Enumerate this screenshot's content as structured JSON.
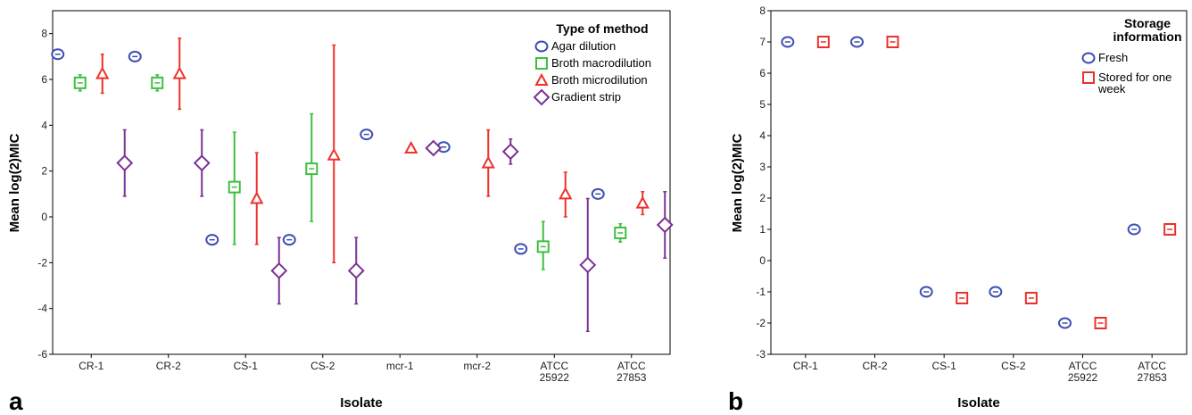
{
  "chart_data": [
    {
      "panel_label": "a",
      "type": "scatter",
      "subtype": "mean-with-error-bars",
      "xlabel": "Isolate",
      "ylabel": "Mean log(2)MIC",
      "ylim": [
        -6,
        9
      ],
      "yticks": [
        -6,
        -4,
        -2,
        0,
        2,
        4,
        6,
        8
      ],
      "ytick_labels": [
        "-6",
        "-4",
        "-2",
        "0",
        "2",
        "4",
        "6",
        "8"
      ],
      "categories": [
        [
          "CR-1"
        ],
        [
          "CR-2"
        ],
        [
          "CS-1"
        ],
        [
          "CS-2"
        ],
        [
          "mcr-1"
        ],
        [
          "mcr-2"
        ],
        [
          "ATCC",
          "25922"
        ],
        [
          "ATCC",
          "27853"
        ]
      ],
      "grid": false,
      "legend": {
        "title": [
          "Type of method"
        ],
        "position": "top-right"
      },
      "series": [
        {
          "name": [
            "Agar dilution"
          ],
          "color": "#3d4fb3",
          "marker": "circle",
          "values": [
            7.1,
            7.0,
            -1.0,
            -1.0,
            3.6,
            3.05,
            -1.4,
            1.0
          ],
          "error_low": [
            7.1,
            7.0,
            -1.0,
            -1.0,
            3.6,
            3.05,
            -1.4,
            1.0
          ],
          "error_high": [
            7.1,
            7.0,
            -1.0,
            -1.0,
            3.6,
            3.05,
            -1.4,
            1.0
          ]
        },
        {
          "name": [
            "Broth macrodilution"
          ],
          "color": "#3fbf3f",
          "marker": "square",
          "values": [
            5.85,
            5.85,
            1.3,
            2.1,
            null,
            null,
            -1.3,
            -0.7
          ],
          "error_low": [
            5.5,
            5.5,
            -1.2,
            -0.2,
            null,
            null,
            -2.3,
            -1.1
          ],
          "error_high": [
            6.2,
            6.2,
            3.7,
            4.5,
            null,
            null,
            -0.2,
            -0.3
          ]
        },
        {
          "name": [
            "Broth microdilution"
          ],
          "color": "#f0302b",
          "marker": "triangle",
          "values": [
            6.25,
            6.25,
            0.8,
            2.7,
            3.0,
            2.35,
            1.0,
            0.6
          ],
          "error_low": [
            5.4,
            4.7,
            -1.2,
            -2.0,
            3.0,
            0.9,
            0.0,
            0.1
          ],
          "error_high": [
            7.1,
            7.8,
            2.8,
            7.5,
            3.0,
            3.8,
            1.95,
            1.1
          ]
        },
        {
          "name": [
            "Gradient strip"
          ],
          "color": "#7b3294",
          "marker": "diamond",
          "values": [
            2.35,
            2.35,
            -2.35,
            -2.35,
            3.0,
            2.85,
            -2.1,
            -0.35
          ],
          "error_low": [
            0.9,
            0.9,
            -3.8,
            -3.8,
            3.0,
            2.3,
            -5.0,
            -1.8
          ],
          "error_high": [
            3.8,
            3.8,
            -0.9,
            -0.9,
            3.0,
            3.4,
            0.8,
            1.1
          ]
        }
      ]
    },
    {
      "panel_label": "b",
      "type": "scatter",
      "subtype": "mean-with-error-bars",
      "xlabel": "Isolate",
      "ylabel": "Mean log(2)MIC",
      "ylim": [
        -3,
        8
      ],
      "yticks": [
        -3,
        -2,
        -1,
        0,
        1,
        2,
        3,
        4,
        5,
        6,
        7,
        8
      ],
      "ytick_labels": [
        "-3",
        "-2",
        "-1",
        "0",
        "1",
        "2",
        "3",
        "4",
        "5",
        "6",
        "7",
        "8"
      ],
      "categories": [
        [
          "CR-1"
        ],
        [
          "CR-2"
        ],
        [
          "CS-1"
        ],
        [
          "CS-2"
        ],
        [
          "ATCC",
          "25922"
        ],
        [
          "ATCC",
          "27853"
        ]
      ],
      "grid": false,
      "legend": {
        "title": [
          "Storage",
          "information"
        ],
        "position": "top-right"
      },
      "series": [
        {
          "name": [
            "Fresh"
          ],
          "color": "#3d4fb3",
          "marker": "circle",
          "values": [
            7.0,
            7.0,
            -1.0,
            -1.0,
            -2.0,
            1.0
          ]
        },
        {
          "name": [
            "Stored for one",
            "week"
          ],
          "color": "#e8312b",
          "marker": "square",
          "values": [
            7.0,
            7.0,
            -1.2,
            -1.2,
            -2.0,
            1.0
          ],
          "error_low": [
            6.97,
            6.97,
            -1.35,
            -1.35,
            -2.0,
            1.0
          ],
          "error_high": [
            7.03,
            7.03,
            -1.05,
            -1.05,
            -2.0,
            1.0
          ]
        }
      ]
    }
  ]
}
